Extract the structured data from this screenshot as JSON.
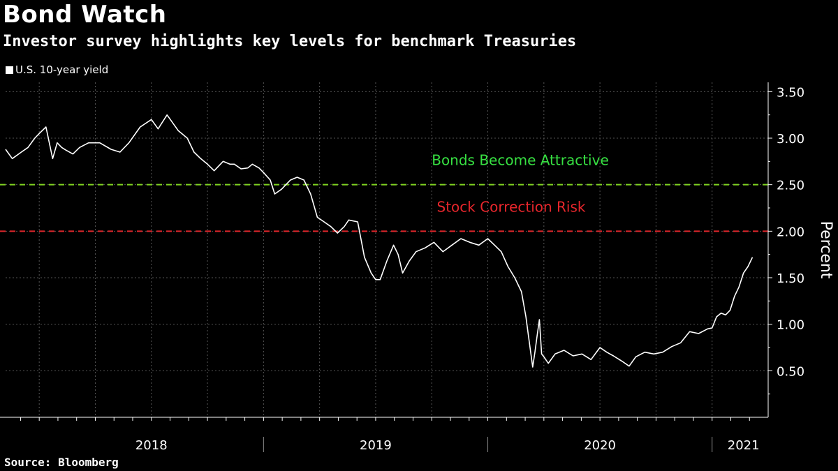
{
  "header": {
    "title": "Bond Watch",
    "subtitle": "Investor survey highlights key levels for benchmark Treasuries"
  },
  "footer": {
    "source": "Source: Bloomberg"
  },
  "colors": {
    "background": "#000000",
    "series": "#ffffff",
    "grid": "#555555",
    "attractive": "#7fd321",
    "correction": "#e0262b",
    "attractive_text": "#37e042",
    "correction_text": "#e8262c"
  },
  "chart_data": {
    "type": "line",
    "title": "Bond Watch",
    "subtitle": "Investor survey highlights key levels for benchmark Treasuries",
    "ylabel": "Percent",
    "xlabel": "",
    "ylim": [
      0.0,
      3.6
    ],
    "xlim": [
      2017.85,
      2021.25
    ],
    "yticks": [
      0.5,
      1.0,
      1.5,
      2.0,
      2.5,
      3.0,
      3.5
    ],
    "ytick_labels": [
      "0.50",
      "1.00",
      "1.50",
      "2.00",
      "2.50",
      "3.00",
      "3.50"
    ],
    "year_labels": [
      {
        "label": "2018",
        "x": 2018.5
      },
      {
        "label": "2019",
        "x": 2019.5
      },
      {
        "label": "2020",
        "x": 2020.5
      },
      {
        "label": "2021",
        "x": 2021.14
      }
    ],
    "grid": true,
    "legend": {
      "position": "top-left",
      "entries": [
        "U.S. 10-year yield"
      ]
    },
    "reference_lines": [
      {
        "name": "Bonds Become Attractive",
        "value": 2.5,
        "color": "#7fd321",
        "style": "dashed"
      },
      {
        "name": "Stock Correction Risk",
        "value": 2.0,
        "color": "#e0262b",
        "style": "dashed"
      }
    ],
    "series": [
      {
        "name": "U.S. 10-year yield",
        "x": [
          2017.85,
          2017.88,
          2017.92,
          2017.95,
          2017.98,
          2018.0,
          2018.03,
          2018.06,
          2018.08,
          2018.1,
          2018.12,
          2018.15,
          2018.18,
          2018.22,
          2018.27,
          2018.32,
          2018.36,
          2018.4,
          2018.45,
          2018.5,
          2018.53,
          2018.57,
          2018.62,
          2018.66,
          2018.69,
          2018.72,
          2018.75,
          2018.78,
          2018.82,
          2018.85,
          2018.87,
          2018.9,
          2018.93,
          2018.95,
          2018.98,
          2019.0,
          2019.03,
          2019.05,
          2019.08,
          2019.12,
          2019.15,
          2019.18,
          2019.21,
          2019.24,
          2019.27,
          2019.3,
          2019.33,
          2019.36,
          2019.38,
          2019.42,
          2019.45,
          2019.48,
          2019.5,
          2019.52,
          2019.55,
          2019.58,
          2019.6,
          2019.62,
          2019.65,
          2019.68,
          2019.72,
          2019.76,
          2019.8,
          2019.84,
          2019.88,
          2019.92,
          2019.96,
          2020.0,
          2020.03,
          2020.06,
          2020.09,
          2020.12,
          2020.15,
          2020.17,
          2020.18,
          2020.2,
          2020.21,
          2020.22,
          2020.23,
          2020.24,
          2020.25,
          2020.27,
          2020.3,
          2020.34,
          2020.38,
          2020.42,
          2020.46,
          2020.5,
          2020.53,
          2020.56,
          2020.6,
          2020.63,
          2020.66,
          2020.7,
          2020.74,
          2020.78,
          2020.82,
          2020.86,
          2020.9,
          2020.94,
          2020.98,
          2021.0,
          2021.02,
          2021.04,
          2021.06,
          2021.08,
          2021.1,
          2021.12,
          2021.14,
          2021.16,
          2021.18
        ],
        "values": [
          2.88,
          2.78,
          2.85,
          2.9,
          3.0,
          3.05,
          3.12,
          2.78,
          2.95,
          2.9,
          2.87,
          2.83,
          2.9,
          2.95,
          2.95,
          2.88,
          2.85,
          2.95,
          3.12,
          3.2,
          3.1,
          3.25,
          3.08,
          3.0,
          2.85,
          2.78,
          2.72,
          2.65,
          2.75,
          2.72,
          2.72,
          2.67,
          2.68,
          2.72,
          2.68,
          2.63,
          2.55,
          2.4,
          2.45,
          2.55,
          2.58,
          2.55,
          2.4,
          2.15,
          2.1,
          2.05,
          1.98,
          2.05,
          2.12,
          2.1,
          1.72,
          1.55,
          1.48,
          1.48,
          1.68,
          1.85,
          1.75,
          1.55,
          1.68,
          1.78,
          1.82,
          1.88,
          1.78,
          1.85,
          1.92,
          1.88,
          1.85,
          1.92,
          1.85,
          1.78,
          1.62,
          1.5,
          1.35,
          1.08,
          0.9,
          0.54,
          0.7,
          0.88,
          1.05,
          0.68,
          0.65,
          0.58,
          0.68,
          0.72,
          0.66,
          0.68,
          0.62,
          0.75,
          0.7,
          0.66,
          0.6,
          0.55,
          0.65,
          0.7,
          0.68,
          0.7,
          0.76,
          0.8,
          0.92,
          0.9,
          0.95,
          0.96,
          1.08,
          1.12,
          1.1,
          1.15,
          1.3,
          1.4,
          1.55,
          1.62,
          1.72
        ]
      }
    ]
  }
}
